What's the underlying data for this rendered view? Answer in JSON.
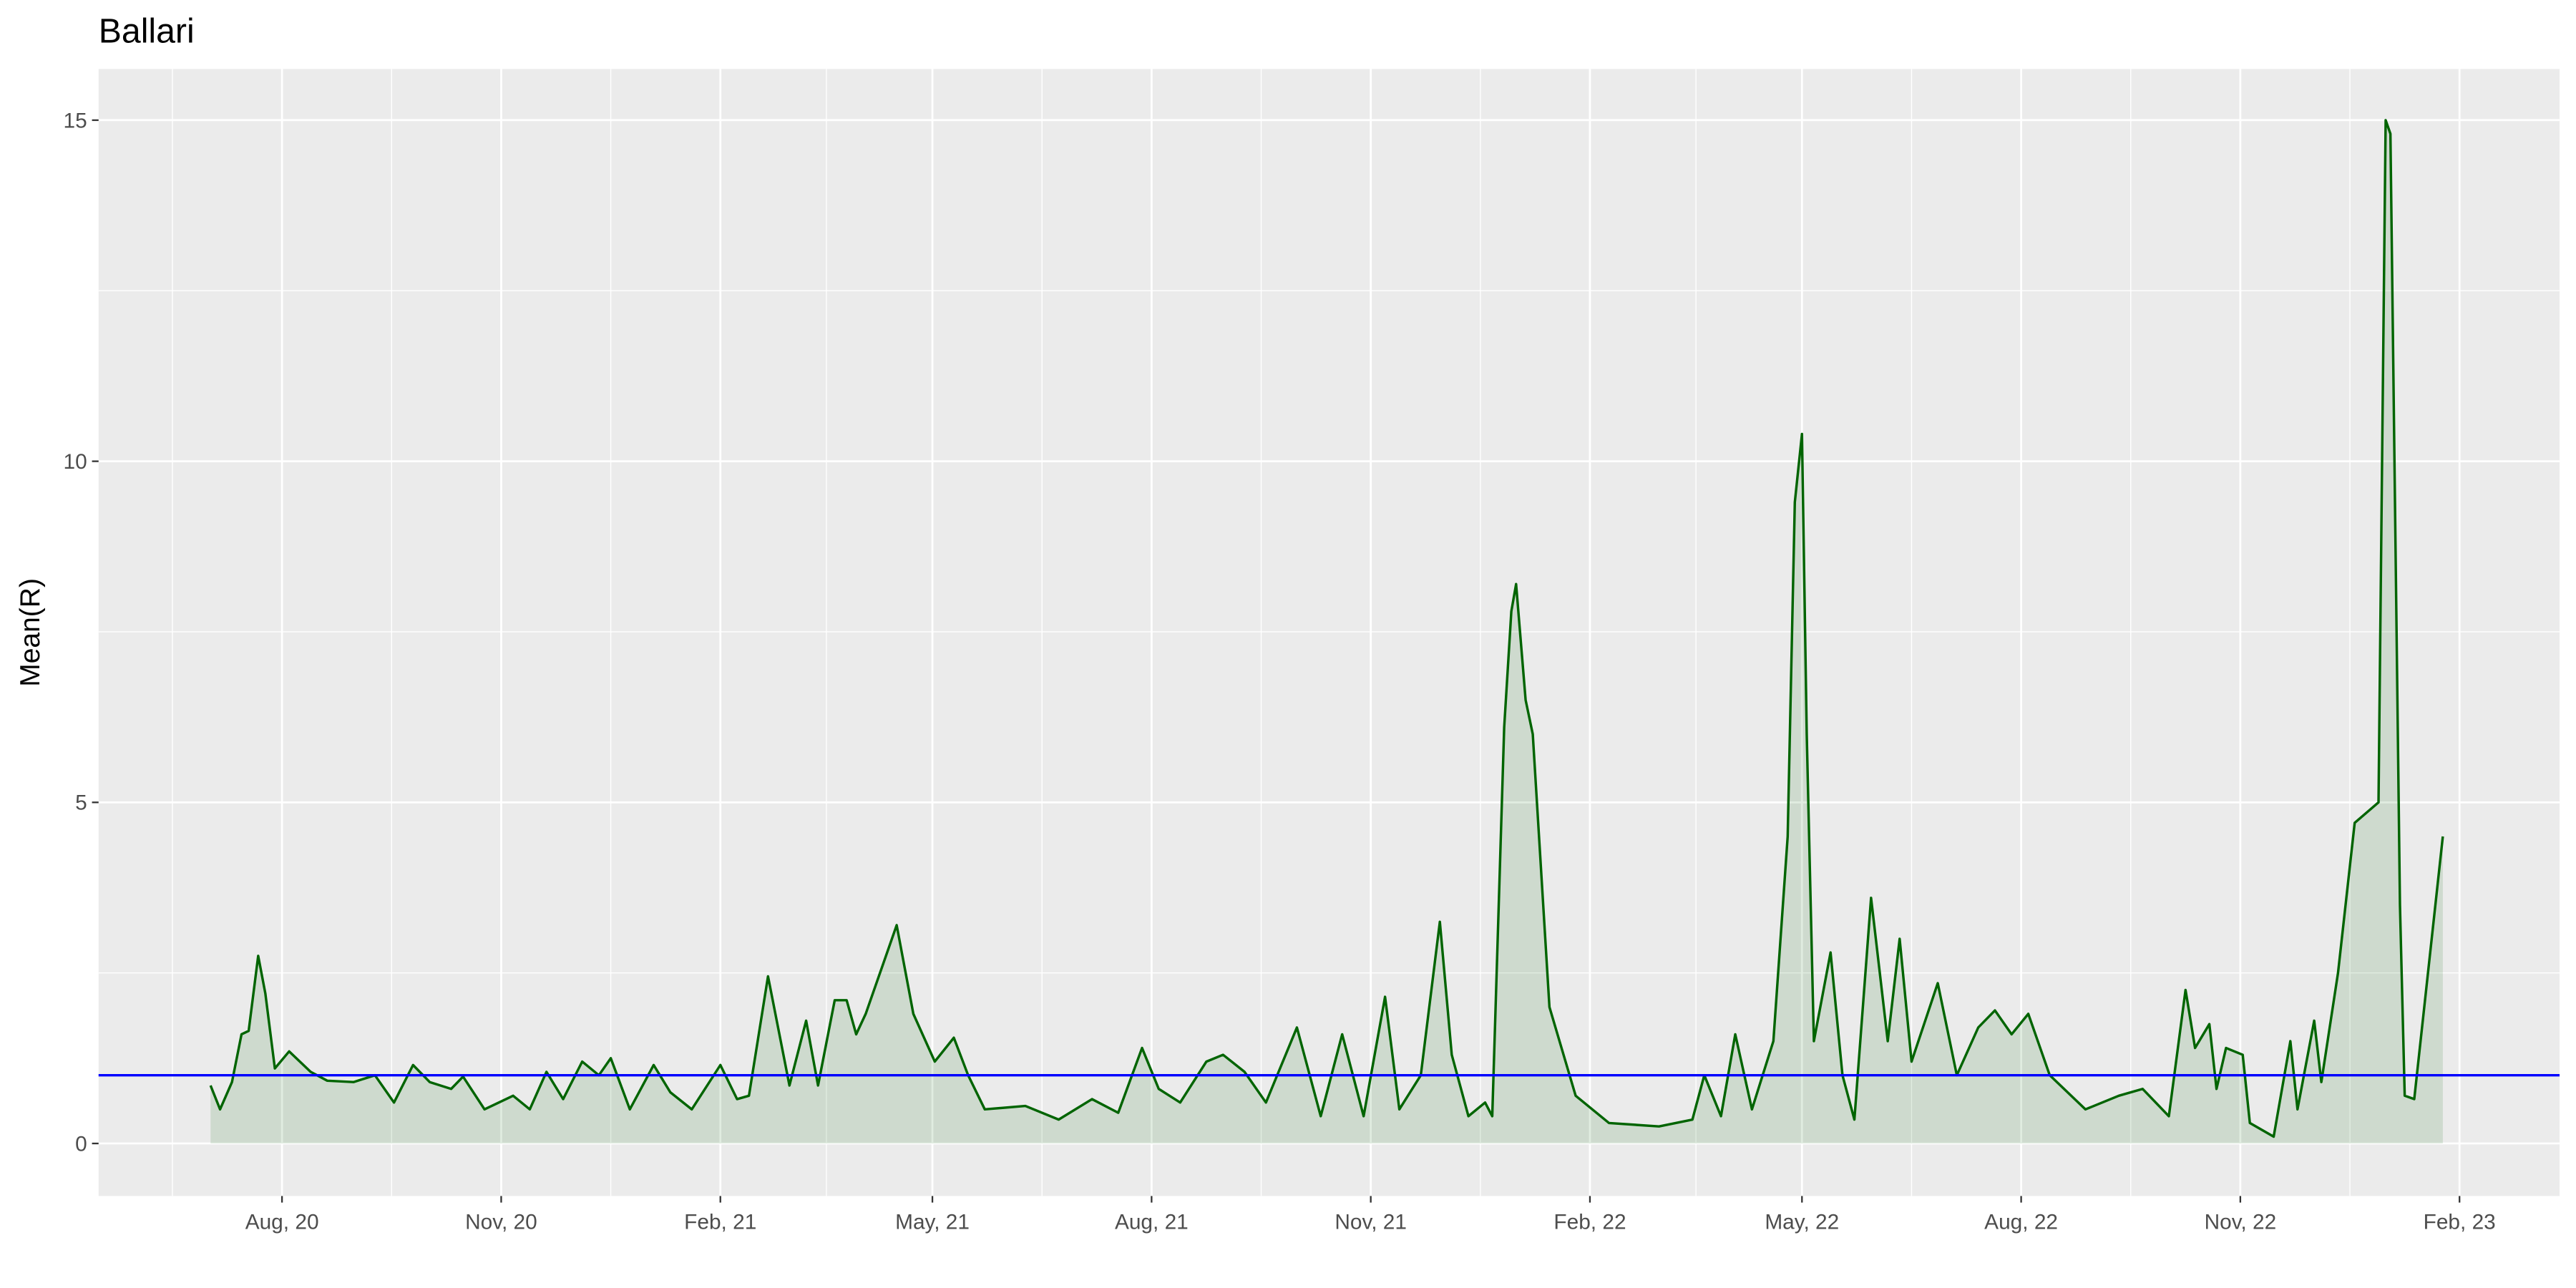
{
  "chart_data": {
    "type": "line",
    "title": "Ballari",
    "y_label": "Mean(R)",
    "color": "#006400",
    "area_opacity": 0.12,
    "hline": {
      "value": 1,
      "color": "#0000ff"
    },
    "grid": true,
    "xlim": [
      "2020-05-16",
      "2023-03-15"
    ],
    "ylim": [
      -0.77,
      15.75
    ],
    "yticks": [
      0,
      5,
      10,
      15
    ],
    "xticks": [
      {
        "value": "2020-08-01",
        "label": "Aug, 20"
      },
      {
        "value": "2020-11-01",
        "label": "Nov, 20"
      },
      {
        "value": "2021-02-01",
        "label": "Feb, 21"
      },
      {
        "value": "2021-05-01",
        "label": "May, 21"
      },
      {
        "value": "2021-08-01",
        "label": "Aug, 21"
      },
      {
        "value": "2021-11-01",
        "label": "Nov, 21"
      },
      {
        "value": "2022-02-01",
        "label": "Feb, 22"
      },
      {
        "value": "2022-05-01",
        "label": "May, 22"
      },
      {
        "value": "2022-08-01",
        "label": "Aug, 22"
      },
      {
        "value": "2022-11-01",
        "label": "Nov, 22"
      },
      {
        "value": "2023-02-01",
        "label": "Feb, 23"
      }
    ],
    "x": [
      "2020-07-02",
      "2020-07-06",
      "2020-07-11",
      "2020-07-15",
      "2020-07-18",
      "2020-07-22",
      "2020-07-25",
      "2020-07-29",
      "2020-08-04",
      "2020-08-13",
      "2020-08-20",
      "2020-08-31",
      "2020-09-09",
      "2020-09-17",
      "2020-09-25",
      "2020-10-02",
      "2020-10-11",
      "2020-10-16",
      "2020-10-25",
      "2020-11-06",
      "2020-11-13",
      "2020-11-20",
      "2020-11-27",
      "2020-12-05",
      "2020-12-12",
      "2020-12-17",
      "2020-12-25",
      "2021-01-04",
      "2021-01-11",
      "2021-01-20",
      "2021-02-01",
      "2021-02-08",
      "2021-02-13",
      "2021-02-21",
      "2021-03-02",
      "2021-03-09",
      "2021-03-14",
      "2021-03-21",
      "2021-03-26",
      "2021-03-30",
      "2021-04-03",
      "2021-04-10",
      "2021-04-16",
      "2021-04-23",
      "2021-05-02",
      "2021-05-10",
      "2021-05-16",
      "2021-05-23",
      "2021-06-09",
      "2021-06-23",
      "2021-07-07",
      "2021-07-18",
      "2021-07-28",
      "2021-08-04",
      "2021-08-13",
      "2021-08-24",
      "2021-08-31",
      "2021-09-09",
      "2021-09-18",
      "2021-10-01",
      "2021-10-11",
      "2021-10-20",
      "2021-10-29",
      "2021-11-07",
      "2021-11-13",
      "2021-11-22",
      "2021-11-30",
      "2021-12-05",
      "2021-12-12",
      "2021-12-19",
      "2021-12-22",
      "2021-12-27",
      "2021-12-30",
      "2022-01-01",
      "2022-01-05",
      "2022-01-08",
      "2022-01-15",
      "2022-01-26",
      "2022-02-09",
      "2022-03-02",
      "2022-03-16",
      "2022-03-21",
      "2022-03-28",
      "2022-04-03",
      "2022-04-10",
      "2022-04-19",
      "2022-04-25",
      "2022-04-28",
      "2022-05-01",
      "2022-05-03",
      "2022-05-06",
      "2022-05-13",
      "2022-05-18",
      "2022-05-23",
      "2022-05-30",
      "2022-06-06",
      "2022-06-11",
      "2022-06-16",
      "2022-06-27",
      "2022-07-05",
      "2022-07-14",
      "2022-07-21",
      "2022-07-28",
      "2022-08-04",
      "2022-08-13",
      "2022-08-28",
      "2022-09-11",
      "2022-09-21",
      "2022-10-02",
      "2022-10-09",
      "2022-10-13",
      "2022-10-19",
      "2022-10-22",
      "2022-10-26",
      "2022-11-02",
      "2022-11-05",
      "2022-11-15",
      "2022-11-22",
      "2022-11-25",
      "2022-12-02",
      "2022-12-05",
      "2022-12-12",
      "2022-12-19",
      "2022-12-29",
      "2023-01-01",
      "2023-01-03",
      "2023-01-07",
      "2023-01-09",
      "2023-01-13",
      "2023-01-25"
    ],
    "values": [
      0.85,
      0.5,
      0.9,
      1.6,
      1.65,
      2.75,
      2.2,
      1.1,
      1.35,
      1.05,
      0.92,
      0.9,
      1.0,
      0.6,
      1.15,
      0.9,
      0.8,
      0.98,
      0.5,
      0.7,
      0.5,
      1.05,
      0.65,
      1.2,
      1.0,
      1.25,
      0.5,
      1.15,
      0.75,
      0.5,
      1.15,
      0.65,
      0.7,
      2.45,
      0.85,
      1.8,
      0.85,
      2.1,
      2.1,
      1.6,
      1.9,
      2.6,
      3.2,
      1.9,
      1.2,
      1.55,
      1.0,
      0.5,
      0.55,
      0.35,
      0.65,
      0.45,
      1.4,
      0.8,
      0.6,
      1.2,
      1.3,
      1.05,
      0.6,
      1.7,
      0.4,
      1.6,
      0.4,
      2.15,
      0.5,
      1.0,
      3.25,
      1.3,
      0.4,
      0.6,
      0.4,
      6.1,
      7.8,
      8.2,
      6.5,
      6.0,
      2.0,
      0.7,
      0.3,
      0.25,
      0.35,
      1.0,
      0.4,
      1.6,
      0.5,
      1.5,
      4.5,
      9.4,
      10.4,
      6.0,
      1.5,
      2.8,
      1.0,
      0.35,
      3.6,
      1.5,
      3.0,
      1.2,
      2.35,
      1.0,
      1.7,
      1.95,
      1.6,
      1.9,
      1.0,
      0.5,
      0.7,
      0.8,
      0.4,
      2.25,
      1.4,
      1.75,
      0.8,
      1.4,
      1.3,
      0.3,
      0.1,
      1.5,
      0.5,
      1.8,
      0.9,
      2.5,
      4.7,
      5.0,
      15.0,
      14.8,
      3.5,
      0.7,
      0.65,
      4.5
    ]
  }
}
